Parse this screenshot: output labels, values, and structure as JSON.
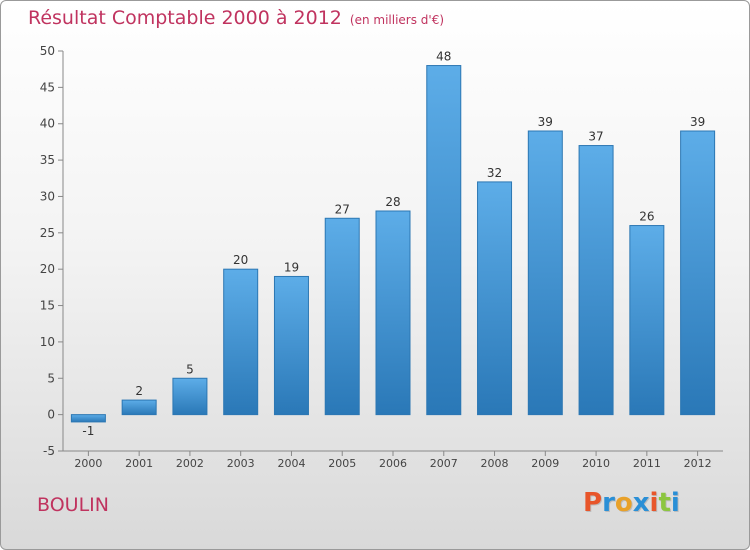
{
  "header": {
    "title": "Résultat Comptable 2000 à 2012",
    "subtitle": "(en milliers d'€)"
  },
  "footer": {
    "commune": "BOULIN",
    "logo_text": "Proxiti"
  },
  "colors": {
    "title": "#c0335f",
    "bar_top": "#5dade8",
    "bar_bottom": "#2a78b7",
    "logo": [
      "#e8552a",
      "#2a8fd6",
      "#e8a12a",
      "#2a8fd6",
      "#e8552a",
      "#8cc63f",
      "#2a8fd6"
    ]
  },
  "chart_data": {
    "type": "bar",
    "title": "Résultat Comptable 2000 à 2012",
    "subtitle": "(en milliers d'€)",
    "xlabel": "",
    "ylabel": "",
    "categories": [
      "2000",
      "2001",
      "2002",
      "2003",
      "2004",
      "2005",
      "2006",
      "2007",
      "2008",
      "2009",
      "2010",
      "2011",
      "2012"
    ],
    "values": [
      -1,
      2,
      5,
      20,
      19,
      27,
      28,
      48,
      32,
      39,
      37,
      26,
      39
    ],
    "ylim": [
      -5,
      50
    ],
    "yticks": [
      -5,
      0,
      5,
      10,
      15,
      20,
      25,
      30,
      35,
      40,
      45,
      50
    ],
    "grid": false,
    "legend": "none"
  }
}
